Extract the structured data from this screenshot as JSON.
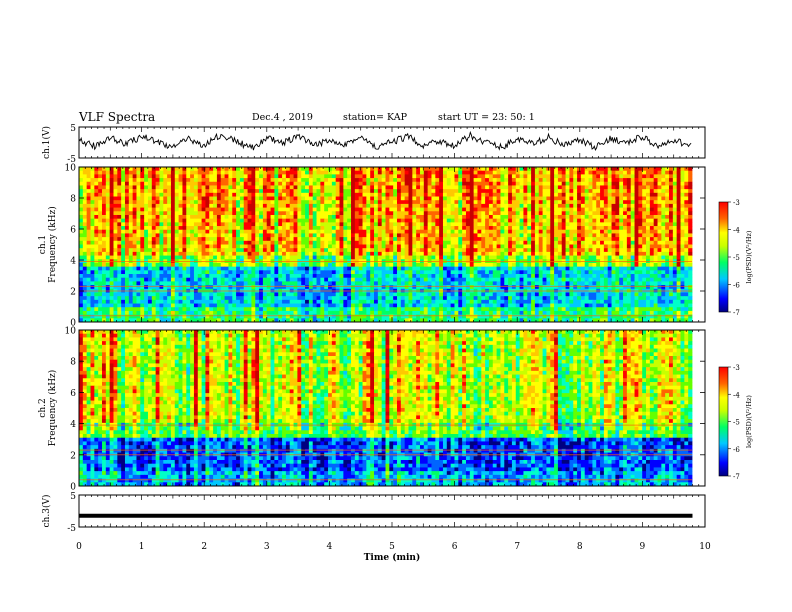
{
  "header": {
    "title": "VLF Spectra",
    "date": "Dec.4 , 2019",
    "station": "station= KAP",
    "start": "start  UT =  23: 50: 1"
  },
  "chart_data": [
    {
      "type": "line",
      "panel": "ch1-waveform",
      "ylabel": "ch.1(V)",
      "ylim": [
        -5,
        5
      ],
      "yticks": [
        "5",
        "-5"
      ],
      "xlim": [
        0,
        10
      ],
      "color": "#000000",
      "series": [
        {
          "x": [
            0,
            0.25,
            0.5,
            0.75,
            1,
            1.25,
            1.5,
            1.75,
            2,
            2.25,
            2.5,
            2.75,
            3,
            3.25,
            3.5,
            3.75,
            4,
            4.25,
            4.5,
            4.75,
            5,
            5.25,
            5.5,
            5.75,
            6,
            6.25,
            6.5,
            6.75,
            7,
            7.25,
            7.5,
            7.75,
            8,
            8.25,
            8.5,
            8.75,
            9,
            9.25,
            9.5,
            9.8
          ],
          "y": [
            0.5,
            -1.2,
            1.8,
            -0.6,
            2.1,
            0.3,
            -1.5,
            1.0,
            -0.8,
            2.3,
            0.6,
            -1.9,
            1.4,
            -0.2,
            2.0,
            -1.1,
            0.9,
            -0.4,
            1.6,
            -1.7,
            0.2,
            1.9,
            -0.9,
            0.7,
            -1.3,
            2.2,
            0.1,
            -1.6,
            1.2,
            -0.5,
            1.7,
            -1.0,
            0.8,
            -1.8,
            1.5,
            -0.3,
            2.0,
            -1.4,
            0.4,
            -0.7
          ]
        }
      ]
    },
    {
      "type": "heatmap",
      "panel": "ch1-spectrogram",
      "ylabel": "ch.1\nFrequency  (kHz)",
      "xlim": [
        0,
        10
      ],
      "ylim": [
        0,
        10
      ],
      "yticks": [
        "0",
        "2",
        "4",
        "6",
        "8",
        "10"
      ],
      "z_dominant": {
        "above_4kHz": "yellow-red",
        "1_to_3.5kHz": "cyan-blue",
        "below_1kHz": "green-blue"
      },
      "colorbar": {
        "label": "log(PSD)(V²/Hz)",
        "range": [
          -7,
          -3
        ],
        "ticks": [
          "-3",
          "-4",
          "-5",
          "-6",
          "-7"
        ]
      }
    },
    {
      "type": "heatmap",
      "panel": "ch2-spectrogram",
      "ylabel": "ch.2\nFrequency  (kHz)",
      "xlim": [
        0,
        10
      ],
      "ylim": [
        0,
        10
      ],
      "yticks": [
        "0",
        "2",
        "4",
        "6",
        "8",
        "10"
      ],
      "z_dominant": {
        "above_4kHz": "yellow-green",
        "1_to_3kHz": "blue",
        "below_1kHz": "blue-cyan"
      },
      "colorbar": {
        "label": "log(PSD)(V²/Hz)",
        "range": [
          -7,
          -3
        ],
        "ticks": [
          "-3",
          "-4",
          "-5",
          "-6",
          "-7"
        ]
      }
    },
    {
      "type": "line",
      "panel": "ch3-waveform",
      "ylabel": "ch.3(V)",
      "ylim": [
        -5,
        5
      ],
      "yticks": [
        "5",
        "-5"
      ],
      "xlim": [
        0,
        10
      ],
      "series": [
        {
          "x": [
            0,
            9.8
          ],
          "y": [
            -1.5,
            -1.5
          ]
        }
      ]
    }
  ],
  "xaxis": {
    "label": "Time  (min)",
    "ticks": [
      "0",
      "1",
      "2",
      "3",
      "4",
      "5",
      "6",
      "7",
      "8",
      "9",
      "10"
    ]
  },
  "colormap": [
    "#000080",
    "#0000ff",
    "#0064ff",
    "#00c8ff",
    "#00ffc8",
    "#00ff64",
    "#64ff00",
    "#c8ff00",
    "#ffff00",
    "#ffc800",
    "#ff6400",
    "#ff0000",
    "#c80000"
  ]
}
